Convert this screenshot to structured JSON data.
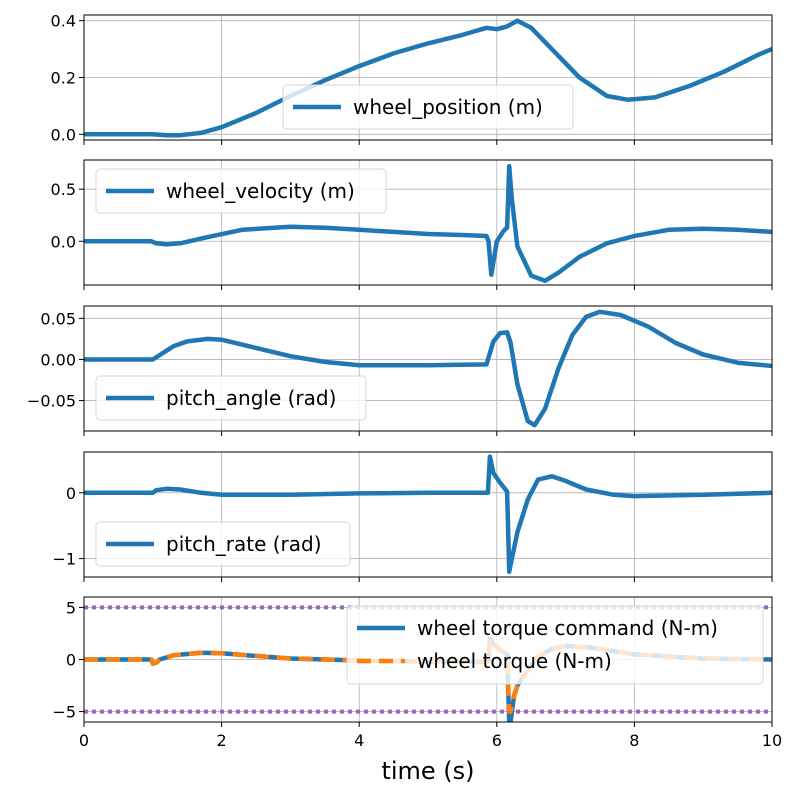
{
  "chart_data": [
    {
      "type": "line",
      "ylim": [
        -0.02,
        0.42
      ],
      "yticks": [
        0.0,
        0.2,
        0.4
      ],
      "ytick_labels": [
        "0.0",
        "0.2",
        "0.4"
      ],
      "grid": true,
      "legend": "lower-center",
      "series": [
        {
          "name": "wheel_position (m)",
          "color": "#1f77b4",
          "style": "solid",
          "x": [
            0,
            0.5,
            1.0,
            1.2,
            1.4,
            1.7,
            2.0,
            2.5,
            3.0,
            3.5,
            4.0,
            4.5,
            5.0,
            5.5,
            5.85,
            6.0,
            6.15,
            6.3,
            6.5,
            6.8,
            7.2,
            7.6,
            7.9,
            8.3,
            8.8,
            9.3,
            9.8,
            10.0
          ],
          "y": [
            0,
            0,
            0,
            -0.003,
            -0.003,
            0.005,
            0.025,
            0.075,
            0.135,
            0.19,
            0.24,
            0.285,
            0.32,
            0.35,
            0.375,
            0.37,
            0.38,
            0.4,
            0.375,
            0.3,
            0.2,
            0.135,
            0.122,
            0.13,
            0.17,
            0.22,
            0.28,
            0.3
          ]
        }
      ]
    },
    {
      "type": "line",
      "ylim": [
        -0.42,
        0.78
      ],
      "yticks": [
        0.0,
        0.5
      ],
      "ytick_labels": [
        "0.0",
        "0.5"
      ],
      "grid": true,
      "legend": "upper-left",
      "series": [
        {
          "name": "wheel_velocity (m)",
          "color": "#1f77b4",
          "style": "solid",
          "x": [
            0,
            0.98,
            1.05,
            1.2,
            1.4,
            1.8,
            2.3,
            3.0,
            3.5,
            4.0,
            4.5,
            5.0,
            5.5,
            5.85,
            5.88,
            5.92,
            6.0,
            6.1,
            6.15,
            6.18,
            6.22,
            6.3,
            6.5,
            6.7,
            6.9,
            7.2,
            7.6,
            8.0,
            8.5,
            9.0,
            9.5,
            10.0
          ],
          "y": [
            0,
            0,
            -0.02,
            -0.03,
            -0.02,
            0.04,
            0.11,
            0.14,
            0.13,
            0.11,
            0.09,
            0.07,
            0.06,
            0.05,
            0.0,
            -0.32,
            0.0,
            0.1,
            0.13,
            0.72,
            0.4,
            -0.05,
            -0.33,
            -0.38,
            -0.3,
            -0.15,
            -0.02,
            0.05,
            0.11,
            0.12,
            0.11,
            0.09
          ]
        }
      ]
    },
    {
      "type": "line",
      "ylim": [
        -0.087,
        0.065
      ],
      "yticks": [
        -0.05,
        0.0,
        0.05
      ],
      "ytick_labels": [
        "−0.05",
        "0.00",
        "0.05"
      ],
      "grid": true,
      "legend": "lower-left",
      "series": [
        {
          "name": "pitch_angle (rad)",
          "color": "#1f77b4",
          "style": "solid",
          "x": [
            0,
            1.0,
            1.15,
            1.3,
            1.5,
            1.8,
            2.0,
            2.5,
            3.0,
            3.5,
            4.0,
            5.0,
            5.85,
            5.95,
            6.05,
            6.15,
            6.2,
            6.3,
            6.45,
            6.55,
            6.7,
            6.9,
            7.1,
            7.3,
            7.5,
            7.8,
            8.2,
            8.6,
            9.0,
            9.5,
            10.0
          ],
          "y": [
            0,
            0,
            0.008,
            0.016,
            0.022,
            0.025,
            0.024,
            0.014,
            0.004,
            -0.003,
            -0.007,
            -0.007,
            -0.006,
            0.022,
            0.032,
            0.033,
            0.02,
            -0.03,
            -0.075,
            -0.08,
            -0.06,
            -0.01,
            0.03,
            0.052,
            0.058,
            0.054,
            0.04,
            0.02,
            0.006,
            -0.004,
            -0.008
          ]
        }
      ]
    },
    {
      "type": "line",
      "ylim": [
        -1.28,
        0.62
      ],
      "yticks": [
        -1,
        0
      ],
      "ytick_labels": [
        "−1",
        "0"
      ],
      "grid": true,
      "legend": "lower-left",
      "series": [
        {
          "name": "pitch_rate (rad)",
          "color": "#1f77b4",
          "style": "solid",
          "x": [
            0,
            1.0,
            1.05,
            1.2,
            1.4,
            1.7,
            2.0,
            3.0,
            4.0,
            5.0,
            5.87,
            5.9,
            5.95,
            6.05,
            6.15,
            6.18,
            6.22,
            6.3,
            6.45,
            6.6,
            6.8,
            7.0,
            7.3,
            7.7,
            8.0,
            9.0,
            10.0
          ],
          "y": [
            0,
            0,
            0.04,
            0.06,
            0.05,
            0.0,
            -0.03,
            -0.03,
            -0.01,
            0.0,
            0.0,
            0.55,
            0.3,
            0.15,
            0.02,
            -1.2,
            -1.0,
            -0.6,
            -0.1,
            0.2,
            0.25,
            0.18,
            0.05,
            -0.03,
            -0.05,
            -0.03,
            0.0
          ]
        }
      ]
    },
    {
      "type": "line",
      "ylim": [
        -6.0,
        6.0
      ],
      "yticks": [
        -5,
        0,
        5
      ],
      "ytick_labels": [
        "−5",
        "0",
        "5"
      ],
      "xlim": [
        0,
        10
      ],
      "xticks": [
        0,
        2,
        4,
        6,
        8,
        10
      ],
      "xtick_labels": [
        "0",
        "2",
        "4",
        "6",
        "8",
        "10"
      ],
      "xlabel": "time (s)",
      "grid": true,
      "legend": "upper-right",
      "series": [
        {
          "name": "wheel torque command (N-m)",
          "color": "#1f77b4",
          "style": "solid",
          "x": [
            0,
            0.98,
            1.0,
            1.05,
            1.1,
            1.3,
            1.7,
            2.0,
            3.0,
            4.0,
            5.0,
            5.88,
            5.9,
            5.95,
            6.05,
            6.15,
            6.18,
            6.2,
            6.25,
            6.3,
            6.45,
            6.6,
            6.8,
            7.0,
            7.3,
            7.6,
            8.0,
            9.0,
            10.0
          ],
          "y": [
            0,
            0,
            -0.4,
            -0.3,
            0.0,
            0.4,
            0.65,
            0.6,
            0.1,
            -0.1,
            -0.2,
            -0.2,
            2.0,
            1.5,
            0.9,
            0.5,
            -6.0,
            -6.0,
            -3.5,
            -2.5,
            -1.0,
            0.3,
            1.0,
            1.3,
            1.2,
            0.9,
            0.5,
            0.1,
            0.0
          ]
        },
        {
          "name": "wheel torque (N-m)",
          "color": "#ff7f0e",
          "style": "dashed",
          "x": [
            0,
            0.98,
            1.0,
            1.05,
            1.1,
            1.3,
            1.7,
            2.0,
            3.0,
            4.0,
            5.0,
            5.88,
            5.9,
            5.95,
            6.05,
            6.15,
            6.18,
            6.2,
            6.25,
            6.3,
            6.45,
            6.6,
            6.8,
            7.0,
            7.3,
            7.6,
            8.0,
            9.0,
            10.0
          ],
          "y": [
            0,
            0,
            -0.4,
            -0.3,
            0.0,
            0.4,
            0.65,
            0.6,
            0.1,
            -0.1,
            -0.2,
            -0.2,
            2.0,
            1.5,
            0.9,
            0.5,
            -5.0,
            -5.0,
            -3.5,
            -2.5,
            -1.0,
            0.3,
            1.0,
            1.3,
            1.2,
            0.9,
            0.5,
            0.1,
            0.0
          ]
        }
      ],
      "limit_lines": {
        "color": "#9467bd",
        "style": "dotted",
        "values": [
          5,
          -5
        ]
      }
    }
  ]
}
